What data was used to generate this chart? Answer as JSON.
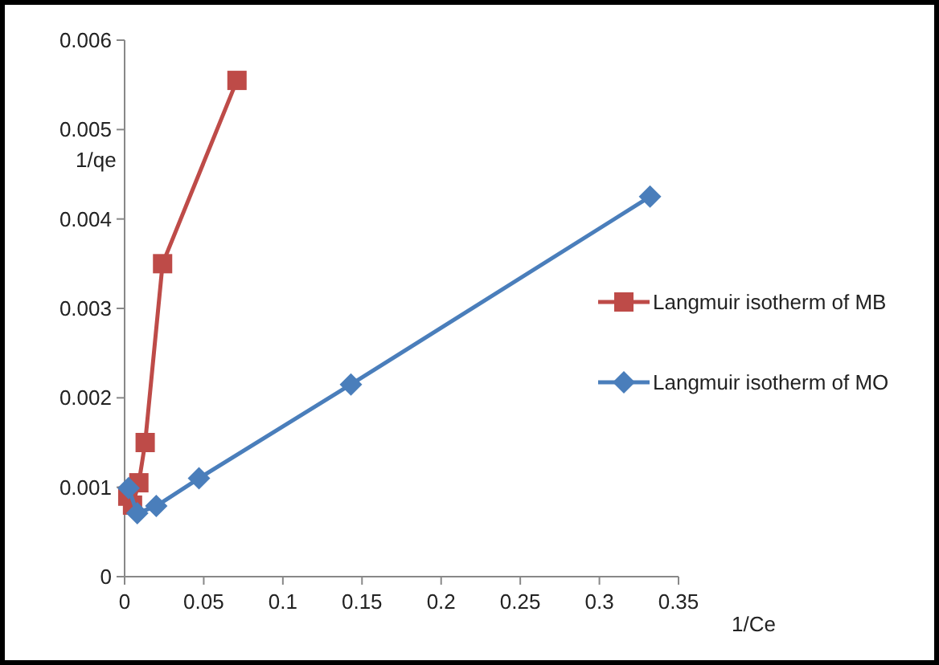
{
  "chart_data": {
    "type": "line",
    "xlabel": "1/Ce",
    "ylabel": "1/qe",
    "xlim": [
      0,
      0.35
    ],
    "ylim": [
      0,
      0.006
    ],
    "xticks": [
      0,
      0.05,
      0.1,
      0.15,
      0.2,
      0.25,
      0.3,
      0.35
    ],
    "yticks": [
      0,
      0.001,
      0.002,
      0.003,
      0.004,
      0.005,
      0.006
    ],
    "legend": "right",
    "grid": false,
    "series": [
      {
        "name": "Langmuir isotherm of MB",
        "color": "#be4b48",
        "marker": "square",
        "x": [
          0.002,
          0.005,
          0.009,
          0.013,
          0.024,
          0.071
        ],
        "values": [
          0.0009,
          0.0008,
          0.00105,
          0.0015,
          0.0035,
          0.00555
        ]
      },
      {
        "name": "Langmuir isotherm of MO",
        "color": "#4a7ebb",
        "marker": "diamond",
        "x": [
          0.0025,
          0.008,
          0.02,
          0.047,
          0.143,
          0.332
        ],
        "values": [
          0.00099,
          0.00071,
          0.00079,
          0.0011,
          0.00215,
          0.00425
        ]
      }
    ]
  }
}
